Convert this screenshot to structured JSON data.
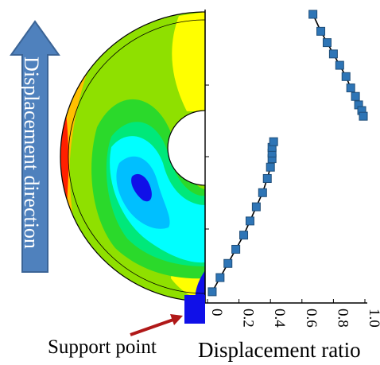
{
  "figure": {
    "arrow_label": "Displacement direction",
    "support_label": "Support point",
    "colors": {
      "arrow_fill": "#4f81bd",
      "arrow_stroke": "#3b6496",
      "support_block": "#1010e8",
      "pointer_arrow": "#b01818",
      "marker": "#2e75b6",
      "marker_edge": "#1f4e79",
      "contour_levels": [
        "#1010e8",
        "#00bfff",
        "#00ffff",
        "#00e87a",
        "#2bd92b",
        "#8fe000",
        "#ffff00",
        "#ffc000",
        "#ff8000",
        "#ff2000"
      ]
    }
  },
  "chart_data": {
    "type": "scatter",
    "xlabel": "Displacement ratio",
    "ylabel": "",
    "xlim": [
      0,
      1.0
    ],
    "x_ticks": [
      "0",
      "0.2",
      "0.4",
      "0.6",
      "0.8",
      "1.0"
    ],
    "grid": false,
    "tick_label_rotation": "vertical",
    "series": [
      {
        "points": [
          [
            0.03,
            0.02
          ],
          [
            0.08,
            0.07
          ],
          [
            0.13,
            0.12
          ],
          [
            0.18,
            0.17
          ],
          [
            0.23,
            0.22
          ],
          [
            0.27,
            0.27
          ],
          [
            0.31,
            0.32
          ],
          [
            0.35,
            0.37
          ],
          [
            0.38,
            0.42
          ],
          [
            0.4,
            0.46
          ],
          [
            0.41,
            0.49
          ],
          [
            0.41,
            0.51
          ],
          [
            0.41,
            0.53
          ],
          [
            0.42,
            0.55
          ]
        ]
      },
      {
        "points": [
          [
            0.67,
            1.0
          ],
          [
            0.72,
            0.94
          ],
          [
            0.76,
            0.9
          ],
          [
            0.8,
            0.86
          ],
          [
            0.84,
            0.82
          ],
          [
            0.88,
            0.78
          ],
          [
            0.91,
            0.74
          ],
          [
            0.94,
            0.71
          ],
          [
            0.96,
            0.68
          ],
          [
            0.98,
            0.66
          ],
          [
            0.99,
            0.64
          ]
        ]
      }
    ]
  }
}
